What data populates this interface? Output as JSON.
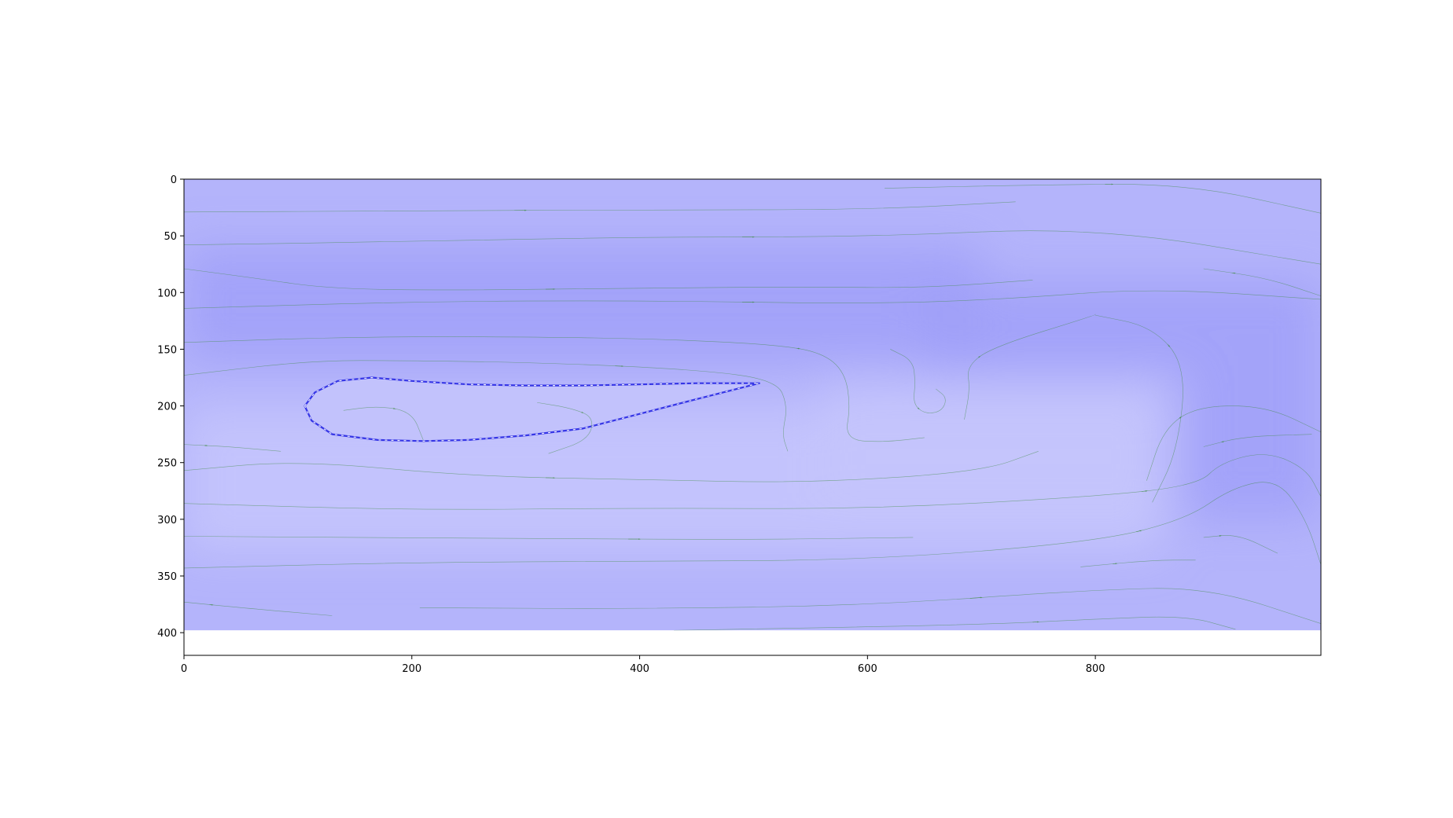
{
  "chart_data": {
    "type": "heatmap",
    "title": "",
    "xlabel": "",
    "ylabel": "",
    "xlim": [
      0,
      998
    ],
    "ylim": [
      420,
      0
    ],
    "image_extent": {
      "x": [
        0,
        998
      ],
      "y": [
        0,
        398
      ]
    },
    "grid": false,
    "legend": "none",
    "x_ticks": [
      0,
      200,
      400,
      600,
      800
    ],
    "y_ticks": [
      0,
      50,
      100,
      150,
      200,
      250,
      300,
      350,
      400
    ],
    "field": {
      "colormap": "bwr (low range, blue tints)",
      "base_color": "#b4b4fb",
      "dark_color": "#a0a0f8",
      "light_color": "#c5c5fd",
      "dark_bands": [
        {
          "x": [
            0,
            700
          ],
          "y": [
            60,
            160
          ]
        },
        {
          "x": [
            650,
            998
          ],
          "y": [
            90,
            170
          ]
        },
        {
          "x": [
            880,
            998
          ],
          "y": [
            170,
            300
          ]
        }
      ],
      "light_bands": [
        {
          "x": [
            0,
            860
          ],
          "y": [
            200,
            330
          ]
        },
        {
          "x": [
            560,
            860
          ],
          "y": [
            180,
            290
          ]
        }
      ]
    },
    "airfoil": {
      "leading_edge": [
        106,
        200
      ],
      "trailing_edge": [
        505,
        180
      ],
      "upper_surface": [
        [
          106,
          200
        ],
        [
          115,
          188
        ],
        [
          135,
          178
        ],
        [
          165,
          175
        ],
        [
          200,
          178
        ],
        [
          250,
          181
        ],
        [
          300,
          182
        ],
        [
          350,
          182
        ],
        [
          400,
          181
        ],
        [
          450,
          180
        ],
        [
          505,
          180
        ]
      ],
      "lower_surface": [
        [
          106,
          200
        ],
        [
          112,
          213
        ],
        [
          130,
          225
        ],
        [
          170,
          230
        ],
        [
          210,
          231
        ],
        [
          250,
          230
        ],
        [
          300,
          226
        ],
        [
          350,
          220
        ],
        [
          400,
          207
        ],
        [
          450,
          194
        ],
        [
          505,
          180
        ]
      ],
      "outline_color": "#3535e6"
    },
    "streamlines": {
      "color": "#3a8a3a",
      "width": 0.6,
      "series": [
        {
          "points": [
            [
              0,
              29
            ],
            [
              200,
              28
            ],
            [
              400,
              27
            ],
            [
              600,
              27
            ],
            [
              730,
              20
            ]
          ]
        },
        {
          "points": [
            [
              615,
              8
            ],
            [
              750,
              5
            ],
            [
              880,
              4
            ],
            [
              998,
              30
            ]
          ]
        },
        {
          "points": [
            [
              0,
              58
            ],
            [
              200,
              55
            ],
            [
              400,
              51
            ],
            [
              600,
              51
            ],
            [
              800,
              42
            ],
            [
              998,
              75
            ]
          ]
        },
        {
          "points": [
            [
              0,
              79
            ],
            [
              60,
              87
            ],
            [
              130,
              97
            ],
            [
              250,
              98
            ],
            [
              400,
              96
            ],
            [
              550,
              95
            ],
            [
              650,
              96
            ],
            [
              745,
              89
            ]
          ]
        },
        {
          "points": [
            [
              0,
              114
            ],
            [
              200,
              108
            ],
            [
              400,
              107
            ],
            [
              600,
              110
            ],
            [
              720,
              106
            ],
            [
              850,
              96
            ],
            [
              998,
              106
            ]
          ]
        },
        {
          "points": [
            [
              895,
              79
            ],
            [
              950,
              87
            ],
            [
              998,
              103
            ]
          ]
        },
        {
          "points": [
            [
              0,
              144
            ],
            [
              150,
              139
            ],
            [
              300,
              139
            ],
            [
              420,
              141
            ],
            [
              520,
              146
            ],
            [
              560,
              153
            ],
            [
              580,
              170
            ],
            [
              585,
              200
            ],
            [
              580,
              230
            ],
            [
              615,
              232
            ],
            [
              650,
              228
            ]
          ]
        },
        {
          "points": [
            [
              0,
              173
            ],
            [
              110,
              160
            ],
            [
              200,
              160
            ],
            [
              320,
              162
            ],
            [
              450,
              168
            ],
            [
              520,
              177
            ],
            [
              530,
              200
            ],
            [
              525,
              225
            ],
            [
              530,
              240
            ]
          ]
        },
        {
          "points": [
            [
              620,
              150
            ],
            [
              640,
              160
            ],
            [
              642,
              180
            ],
            [
              640,
              198
            ],
            [
              650,
              207
            ],
            [
              665,
              205
            ],
            [
              670,
              193
            ],
            [
              660,
              185
            ]
          ]
        },
        {
          "points": [
            [
              685,
              212
            ],
            [
              690,
              185
            ],
            [
              687,
              165
            ],
            [
              710,
              148
            ],
            [
              800,
              120
            ],
            [
              800,
              119
            ]
          ]
        },
        {
          "points": [
            [
              0,
              234
            ],
            [
              40,
              236
            ],
            [
              85,
              240
            ]
          ]
        },
        {
          "points": [
            [
              140,
              204
            ],
            [
              170,
              200
            ],
            [
              200,
              205
            ],
            [
              210,
              230
            ]
          ]
        },
        {
          "points": [
            [
              310,
              197
            ],
            [
              340,
              202
            ],
            [
              360,
              210
            ],
            [
              355,
              230
            ],
            [
              320,
              242
            ]
          ]
        },
        {
          "points": [
            [
              0,
              257
            ],
            [
              100,
              248
            ],
            [
              250,
              262
            ],
            [
              400,
              265
            ],
            [
              550,
              268
            ],
            [
              700,
              258
            ],
            [
              750,
              240
            ]
          ]
        },
        {
          "points": [
            [
              0,
              286
            ],
            [
              200,
              292
            ],
            [
              400,
              290
            ],
            [
              600,
              291
            ],
            [
              800,
              280
            ],
            [
              890,
              270
            ],
            [
              910,
              250
            ],
            [
              950,
              240
            ],
            [
              985,
              255
            ],
            [
              998,
              280
            ]
          ]
        },
        {
          "points": [
            [
              0,
              315
            ],
            [
              300,
              317
            ],
            [
              500,
              318
            ],
            [
              640,
              316
            ]
          ]
        },
        {
          "points": [
            [
              0,
              343
            ],
            [
              200,
              338
            ],
            [
              400,
              337
            ],
            [
              600,
              336
            ],
            [
              800,
              320
            ],
            [
              880,
              300
            ],
            [
              920,
              272
            ],
            [
              960,
              264
            ],
            [
              985,
              300
            ],
            [
              998,
              340
            ]
          ]
        },
        {
          "points": [
            [
              787,
              342
            ],
            [
              850,
              336
            ],
            [
              888,
              336
            ]
          ]
        },
        {
          "points": [
            [
              895,
              316
            ],
            [
              925,
              313
            ],
            [
              960,
              330
            ]
          ]
        },
        {
          "points": [
            [
              845,
              266
            ],
            [
              860,
              220
            ],
            [
              890,
              200
            ],
            [
              950,
              200
            ],
            [
              998,
              223
            ]
          ]
        },
        {
          "points": [
            [
              895,
              236
            ],
            [
              930,
              227
            ],
            [
              990,
              225
            ]
          ]
        },
        {
          "points": [
            [
              0,
              373
            ],
            [
              50,
              378
            ],
            [
              130,
              385
            ]
          ]
        },
        {
          "points": [
            [
              207,
              378
            ],
            [
              400,
              379
            ],
            [
              600,
              376
            ],
            [
              800,
              362
            ],
            [
              900,
              360
            ],
            [
              998,
              392
            ]
          ]
        },
        {
          "points": [
            [
              430,
              398
            ],
            [
              700,
              393
            ],
            [
              800,
              388
            ],
            [
              880,
              385
            ],
            [
              923,
              397
            ]
          ]
        },
        {
          "points": [
            [
              800,
              120
            ],
            [
              850,
              130
            ],
            [
              880,
              165
            ],
            [
              872,
              240
            ],
            [
              850,
              285
            ]
          ]
        }
      ]
    }
  }
}
